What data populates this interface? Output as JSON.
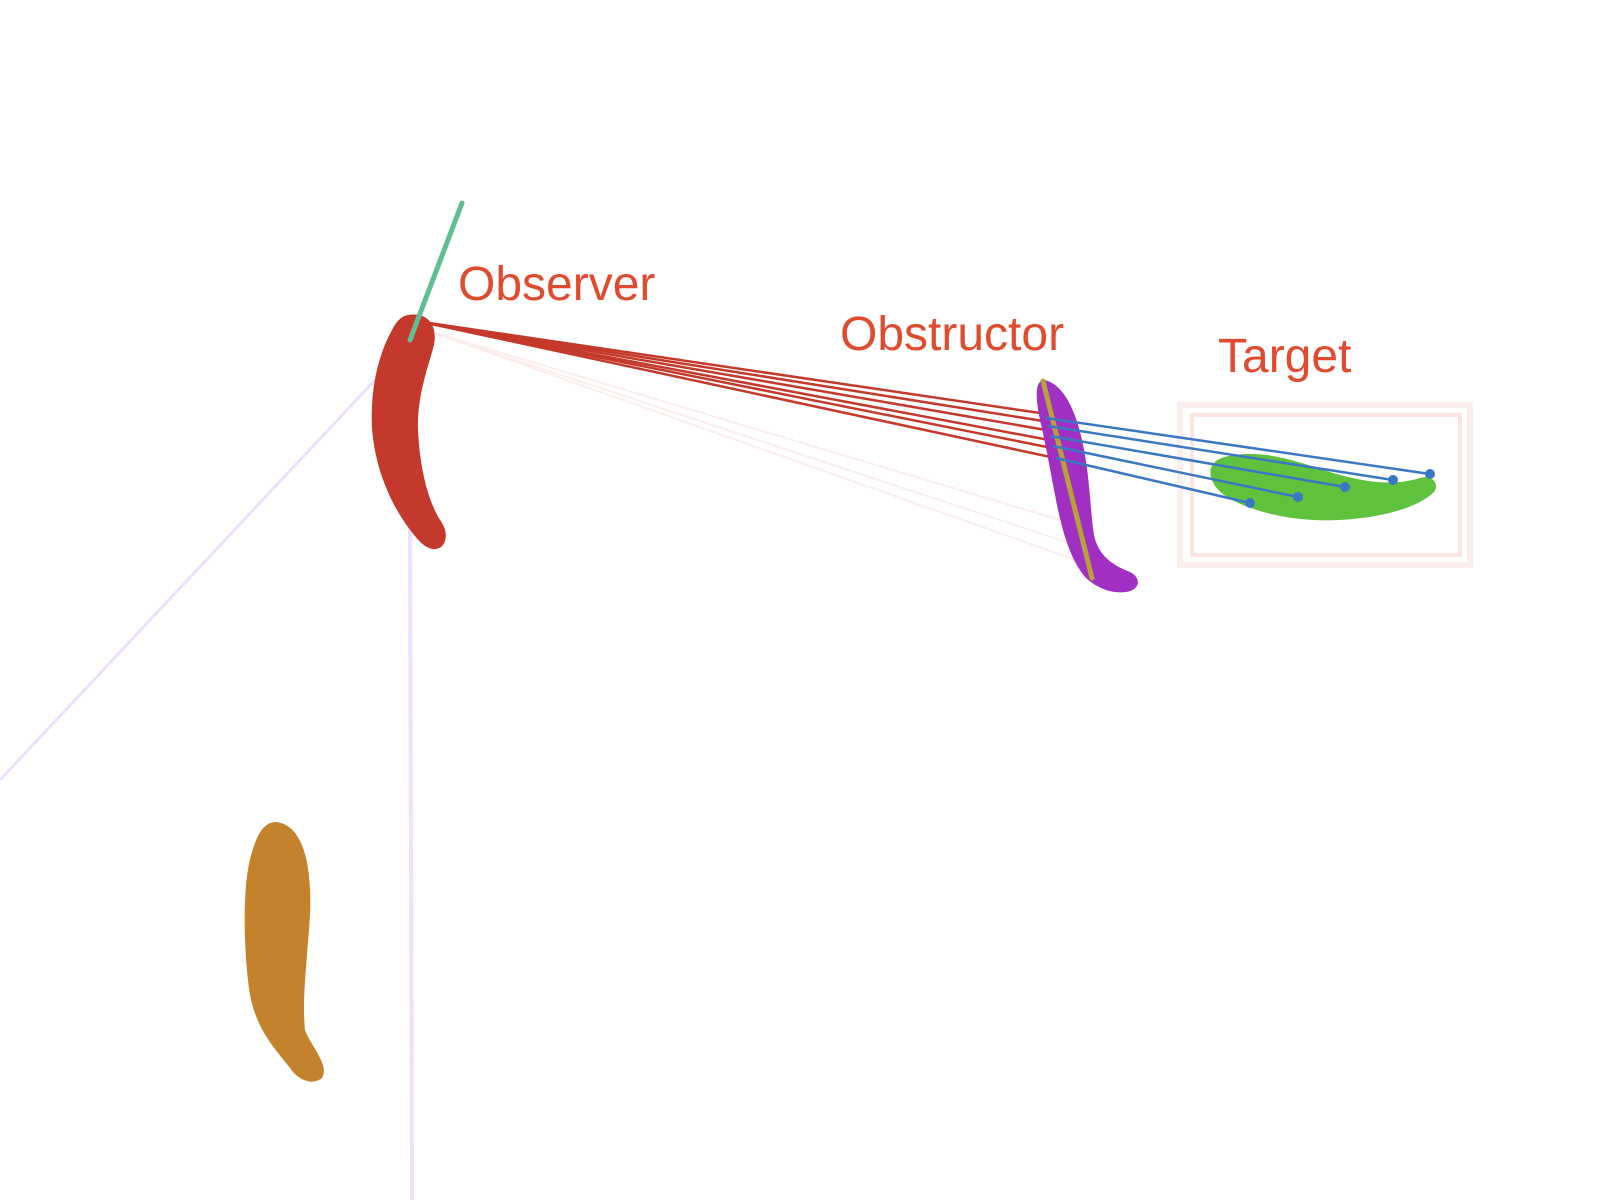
{
  "labels": {
    "observer": "Observer",
    "obstructor": "Obstructor",
    "target": "Target"
  },
  "colors": {
    "label": "#e04a2f",
    "observer_body": "#c4392b",
    "observer_rays": "#c4392b",
    "observer_direction": "#5fbf94",
    "obstructor_body": "#a12fc4",
    "obstructor_axis": "#b8a03a",
    "target_body": "#5ec23d",
    "target_rays": "#3a78c4",
    "target_box": "#fbe4e2",
    "bystander_body": "#c4822d",
    "view_cone": "#eee0fa",
    "faint_rays": "#fdeeee"
  }
}
